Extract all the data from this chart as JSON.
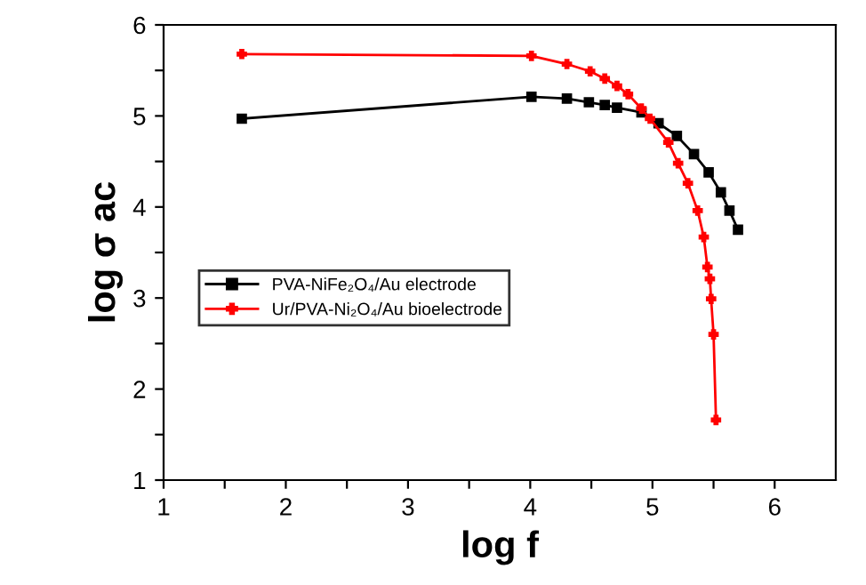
{
  "chart_data": {
    "type": "line",
    "xlabel": "log f",
    "ylabel": "log σ ac",
    "xlim": [
      1,
      6.5
    ],
    "ylim": [
      1,
      6
    ],
    "xticks": [
      1,
      {
        "value": 1.5,
        "label": null
      },
      2,
      {
        "value": 2.5,
        "label": null
      },
      3,
      {
        "value": 3.5,
        "label": null
      },
      4,
      {
        "value": 4.5,
        "label": null
      },
      5,
      {
        "value": 5.5,
        "label": null
      },
      6
    ],
    "yticks": [
      1,
      {
        "value": 1.5,
        "label": null
      },
      2,
      {
        "value": 2.5,
        "label": null
      },
      3,
      {
        "value": 3.5,
        "label": null
      },
      4,
      {
        "value": 4.5,
        "label": null
      },
      5,
      {
        "value": 5.5,
        "label": null
      },
      6
    ],
    "legend": "left",
    "grid": false,
    "series": [
      {
        "name": "PVA-NiFe₂O₄/Au electrode",
        "color": "#000000",
        "marker": "square",
        "x": [
          1.64,
          4.01,
          4.3,
          4.48,
          4.61,
          4.71,
          4.91,
          5.05,
          5.2,
          5.34,
          5.46,
          5.56,
          5.63,
          5.7
        ],
        "values": [
          4.97,
          5.21,
          5.19,
          5.15,
          5.12,
          5.09,
          5.04,
          4.92,
          4.78,
          4.58,
          4.38,
          4.16,
          3.96,
          3.75
        ]
      },
      {
        "name": "Ur/PVA-Ni₂O₄/Au bioelectrode",
        "color": "#ff0000",
        "marker": "cross",
        "x": [
          1.64,
          4.01,
          4.3,
          4.49,
          4.61,
          4.71,
          4.8,
          4.91,
          4.98,
          5.13,
          5.21,
          5.29,
          5.37,
          5.42,
          5.45,
          5.47,
          5.48,
          5.5,
          5.52
        ],
        "values": [
          5.68,
          5.66,
          5.57,
          5.49,
          5.41,
          5.33,
          5.24,
          5.08,
          4.97,
          4.71,
          4.48,
          4.26,
          3.96,
          3.67,
          3.34,
          3.21,
          2.99,
          2.6,
          1.66
        ]
      }
    ]
  }
}
